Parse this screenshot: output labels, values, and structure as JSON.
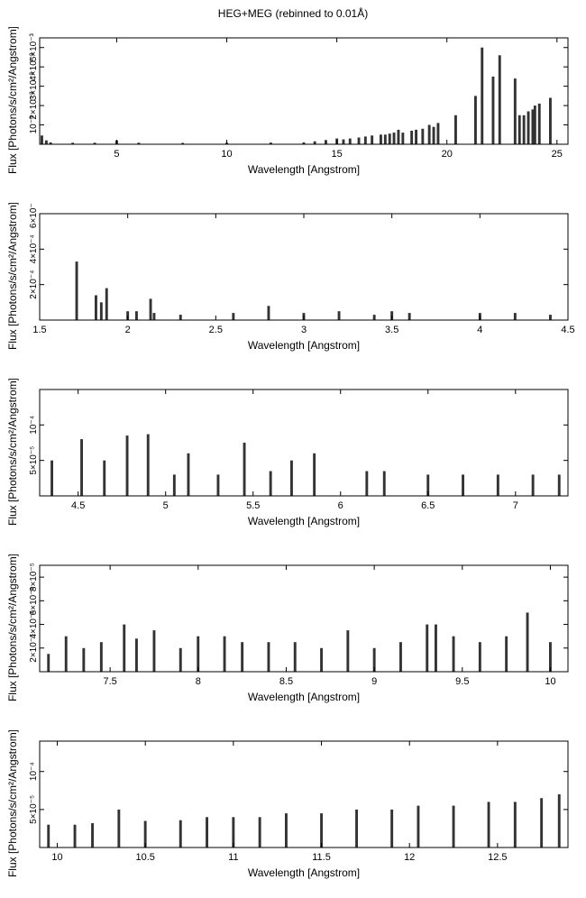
{
  "page": {
    "title": "HEG+MEG (rebinned to 0.01Å)"
  },
  "chart_data": [
    {
      "type": "bar",
      "xlabel": "Wavelength [Angstrom]",
      "ylabel": "Flux [Photons/s/cm²/Angstrom]",
      "xlim": [
        1.5,
        25.5
      ],
      "ylim": [
        0,
        0.0055
      ],
      "xticks": [
        5,
        10,
        15,
        20,
        25
      ],
      "xtick_labels": [
        "5",
        "10",
        "15",
        "20",
        "25"
      ],
      "yticks": [
        0.001,
        0.002,
        0.003,
        0.004,
        0.005
      ],
      "ytick_labels": [
        "10⁻³",
        "2×10⁻³",
        "3×10⁻³",
        "4×10⁻³",
        "5×10⁻³"
      ],
      "x": [
        1.6,
        1.8,
        2.0,
        3.0,
        4.0,
        5.0,
        6.0,
        8.0,
        10.0,
        12.0,
        13.5,
        14.0,
        14.5,
        15.0,
        15.3,
        15.6,
        16.0,
        16.3,
        16.6,
        17.0,
        17.2,
        17.4,
        17.6,
        17.8,
        18.0,
        18.4,
        18.6,
        18.9,
        19.2,
        19.4,
        19.6,
        20.4,
        21.3,
        21.6,
        22.1,
        22.4,
        23.1,
        23.3,
        23.5,
        23.7,
        23.9,
        24.0,
        24.2,
        24.7
      ],
      "values": [
        0.00045,
        0.0002,
        0.0001,
        8e-05,
        8e-05,
        0.0002,
        8e-05,
        7e-05,
        8e-05,
        9e-05,
        0.0001,
        0.00015,
        0.00022,
        0.0003,
        0.00025,
        0.0003,
        0.00035,
        0.0004,
        0.00045,
        0.0005,
        0.0005,
        0.00055,
        0.0006,
        0.00075,
        0.0006,
        0.0007,
        0.00075,
        0.0008,
        0.001,
        0.0009,
        0.0011,
        0.0015,
        0.0025,
        0.005,
        0.0035,
        0.0046,
        0.0034,
        0.0015,
        0.0015,
        0.0017,
        0.0018,
        0.002,
        0.0021,
        0.0024
      ]
    },
    {
      "type": "bar",
      "xlabel": "Wavelength [Angstrom]",
      "ylabel": "Flux [Photons/s/cm²/Angstrom]",
      "xlim": [
        1.5,
        4.5
      ],
      "ylim": [
        0,
        0.0006
      ],
      "xticks": [
        1.5,
        2,
        2.5,
        3,
        3.5,
        4,
        4.5
      ],
      "xtick_labels": [
        "1.5",
        "2",
        "2.5",
        "3",
        "3.5",
        "4",
        "4.5"
      ],
      "yticks": [
        0.0002,
        0.0004,
        0.0006
      ],
      "ytick_labels": [
        "2×10⁻⁴",
        "4×10⁻⁴",
        "6×10⁻⁴"
      ],
      "x": [
        1.71,
        1.82,
        1.85,
        1.88,
        2.0,
        2.05,
        2.13,
        2.15,
        2.3,
        2.6,
        2.8,
        3.0,
        3.2,
        3.4,
        3.5,
        3.6,
        4.0,
        4.2,
        4.4
      ],
      "values": [
        0.00033,
        0.00014,
        0.0001,
        0.00018,
        5e-05,
        5e-05,
        0.00012,
        4e-05,
        3e-05,
        4e-05,
        8e-05,
        4e-05,
        5e-05,
        3e-05,
        5e-05,
        4e-05,
        4e-05,
        4e-05,
        3e-05
      ]
    },
    {
      "type": "bar",
      "xlabel": "Wavelength [Angstrom]",
      "ylabel": "Flux [Photons/s/cm²/Angstrom]",
      "xlim": [
        4.28,
        7.3
      ],
      "ylim": [
        0,
        0.00015
      ],
      "xticks": [
        4.5,
        5,
        5.5,
        6,
        6.5,
        7
      ],
      "xtick_labels": [
        "4.5",
        "5",
        "5.5",
        "6",
        "6.5",
        "7"
      ],
      "yticks": [
        5e-05,
        0.0001
      ],
      "ytick_labels": [
        "5×10⁻⁵",
        "10⁻⁴"
      ],
      "x": [
        4.35,
        4.52,
        4.65,
        4.78,
        4.9,
        5.05,
        5.13,
        5.3,
        5.45,
        5.6,
        5.72,
        5.85,
        6.15,
        6.25,
        6.5,
        6.7,
        6.9,
        7.1,
        7.25
      ],
      "values": [
        5e-05,
        8e-05,
        5e-05,
        8.5e-05,
        8.7e-05,
        3e-05,
        6e-05,
        3e-05,
        7.5e-05,
        3.5e-05,
        5e-05,
        6e-05,
        3.5e-05,
        3.5e-05,
        3e-05,
        3e-05,
        3e-05,
        3e-05,
        3e-05
      ]
    },
    {
      "type": "bar",
      "xlabel": "Wavelength [Angstrom]",
      "ylabel": "Flux [Photons/s/cm²/Angstrom]",
      "xlim": [
        7.1,
        10.1
      ],
      "ylim": [
        0,
        9e-05
      ],
      "xticks": [
        7.5,
        8,
        8.5,
        9,
        9.5,
        10
      ],
      "xtick_labels": [
        "7.5",
        "8",
        "8.5",
        "9",
        "9.5",
        "10"
      ],
      "yticks": [
        2e-05,
        4e-05,
        6e-05,
        8e-05
      ],
      "ytick_labels": [
        "2×10⁻⁵",
        "4×10⁻⁵",
        "6×10⁻⁵",
        "8×10⁻⁵"
      ],
      "x": [
        7.15,
        7.25,
        7.35,
        7.45,
        7.58,
        7.65,
        7.75,
        7.9,
        8.0,
        8.15,
        8.25,
        8.4,
        8.55,
        8.7,
        8.85,
        9.0,
        9.15,
        9.3,
        9.35,
        9.45,
        9.6,
        9.75,
        9.87,
        10.0
      ],
      "values": [
        1.5e-05,
        3e-05,
        2e-05,
        2.5e-05,
        4e-05,
        2.8e-05,
        3.5e-05,
        2e-05,
        3e-05,
        3e-05,
        2.5e-05,
        2.5e-05,
        2.5e-05,
        2e-05,
        3.5e-05,
        2e-05,
        2.5e-05,
        4e-05,
        4e-05,
        3e-05,
        2.5e-05,
        3e-05,
        5e-05,
        2.5e-05
      ]
    },
    {
      "type": "bar",
      "xlabel": "Wavelength [Angstrom]",
      "ylabel": "Flux [Photons/s/cm²/Angstrom]",
      "xlim": [
        9.9,
        12.9
      ],
      "ylim": [
        0,
        0.00014
      ],
      "xticks": [
        10,
        10.5,
        11,
        11.5,
        12,
        12.5
      ],
      "xtick_labels": [
        "10",
        "10.5",
        "11",
        "11.5",
        "12",
        "12.5"
      ],
      "yticks": [
        5e-05,
        0.0001
      ],
      "ytick_labels": [
        "5×10⁻⁵",
        "10⁻⁴"
      ],
      "x": [
        9.95,
        10.1,
        10.2,
        10.35,
        10.5,
        10.7,
        10.85,
        11.0,
        11.15,
        11.3,
        11.5,
        11.7,
        11.9,
        12.05,
        12.25,
        12.45,
        12.6,
        12.75,
        12.85
      ],
      "values": [
        3e-05,
        3e-05,
        3.2e-05,
        5e-05,
        3.5e-05,
        3.6e-05,
        4e-05,
        4e-05,
        4e-05,
        4.5e-05,
        4.5e-05,
        5e-05,
        5e-05,
        5.5e-05,
        5.5e-05,
        6e-05,
        6e-05,
        6.5e-05,
        7e-05
      ]
    }
  ]
}
